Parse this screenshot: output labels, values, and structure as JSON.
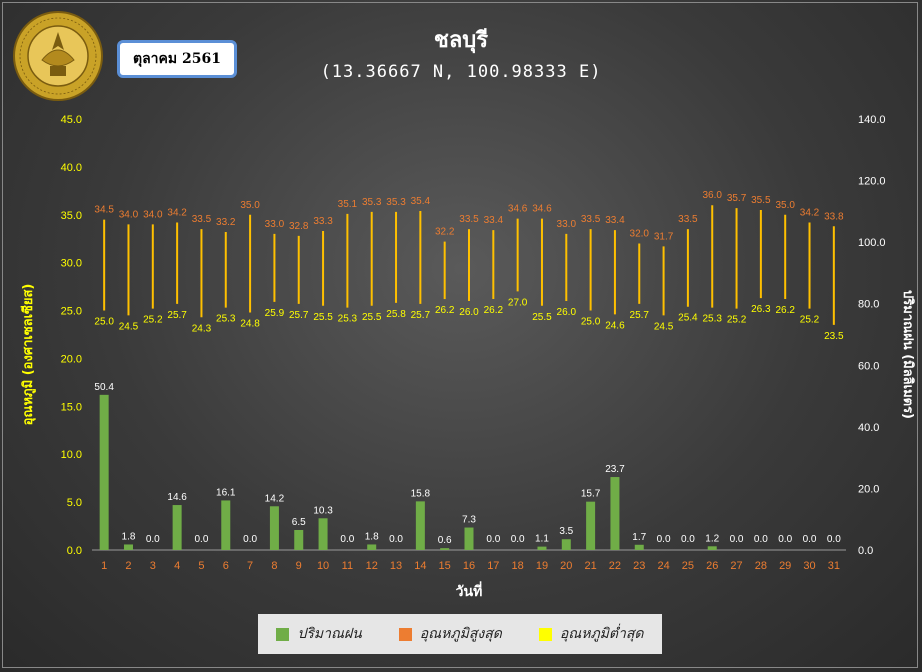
{
  "header": {
    "title": "ชลบุรี",
    "coords": "(13.36667 N, 100.98333 E)",
    "month": "ตุลาคม 2561",
    "logo_text": "กรมอุตุนิยมวิทยา METEOROLOGICAL DEPARTMENT"
  },
  "colors": {
    "rain": "#70ad47",
    "max_label": "#ed7d31",
    "bar_line": "#ffc000",
    "min_legend": "#ffff00",
    "left_axis": "#ffff00",
    "right_axis": "#ffffff",
    "day_labels": "#ed7d31"
  },
  "legend": {
    "rain": "ปริมาณฝน",
    "max": "อุณหภูมิสูงสุด",
    "min": "อุณหภูมิต่ำสุด"
  },
  "chart_data": {
    "type": "bar",
    "xlabel": "วันที่",
    "ylabel_left": "อุณหภูมิ (องศาเซลเซียส)",
    "ylabel_right": "ปริมาณฝน (มิลลิเมตร)",
    "ylim_left": [
      0,
      45
    ],
    "ylim_right": [
      0,
      140
    ],
    "yticks_left": [
      "0.0",
      "5.0",
      "10.0",
      "15.0",
      "20.0",
      "25.0",
      "30.0",
      "35.0",
      "40.0",
      "45.0"
    ],
    "yticks_right": [
      "0.0",
      "20.0",
      "40.0",
      "60.0",
      "80.0",
      "100.0",
      "120.0",
      "140.0"
    ],
    "categories": [
      "1",
      "2",
      "3",
      "4",
      "5",
      "6",
      "7",
      "8",
      "9",
      "10",
      "11",
      "12",
      "13",
      "14",
      "15",
      "16",
      "17",
      "18",
      "19",
      "20",
      "21",
      "22",
      "23",
      "24",
      "25",
      "26",
      "27",
      "28",
      "29",
      "30",
      "31"
    ],
    "series": [
      {
        "name": "ปริมาณฝน",
        "type": "bar",
        "axis": "right",
        "values": [
          50.4,
          1.8,
          0.0,
          14.6,
          0.0,
          16.1,
          0.0,
          14.2,
          6.5,
          10.3,
          0.0,
          1.8,
          0.0,
          15.8,
          0.6,
          7.3,
          0.0,
          0.0,
          1.1,
          3.5,
          15.7,
          23.7,
          1.7,
          0.0,
          0.0,
          1.2,
          0.0,
          0.0,
          0.0,
          0.0,
          0.0
        ]
      },
      {
        "name": "อุณหภูมิสูงสุด",
        "type": "high",
        "axis": "left",
        "values": [
          34.5,
          34.0,
          34.0,
          34.2,
          33.5,
          33.2,
          35.0,
          33.0,
          32.8,
          33.3,
          35.1,
          35.3,
          35.3,
          35.4,
          32.2,
          33.5,
          33.4,
          34.6,
          34.6,
          33.0,
          33.5,
          33.4,
          32.0,
          31.7,
          33.5,
          36.0,
          35.7,
          35.5,
          35.0,
          34.2,
          33.8
        ]
      },
      {
        "name": "อุณหภูมิต่ำสุด",
        "type": "low",
        "axis": "left",
        "values": [
          25.0,
          24.5,
          25.2,
          25.7,
          24.3,
          25.3,
          24.8,
          25.9,
          25.7,
          25.5,
          25.3,
          25.5,
          25.8,
          25.7,
          26.2,
          26.0,
          26.2,
          27.0,
          25.5,
          26.0,
          25.0,
          24.6,
          25.7,
          24.5,
          25.4,
          25.3,
          25.2,
          26.3,
          26.2,
          25.2,
          23.5
        ]
      }
    ]
  }
}
